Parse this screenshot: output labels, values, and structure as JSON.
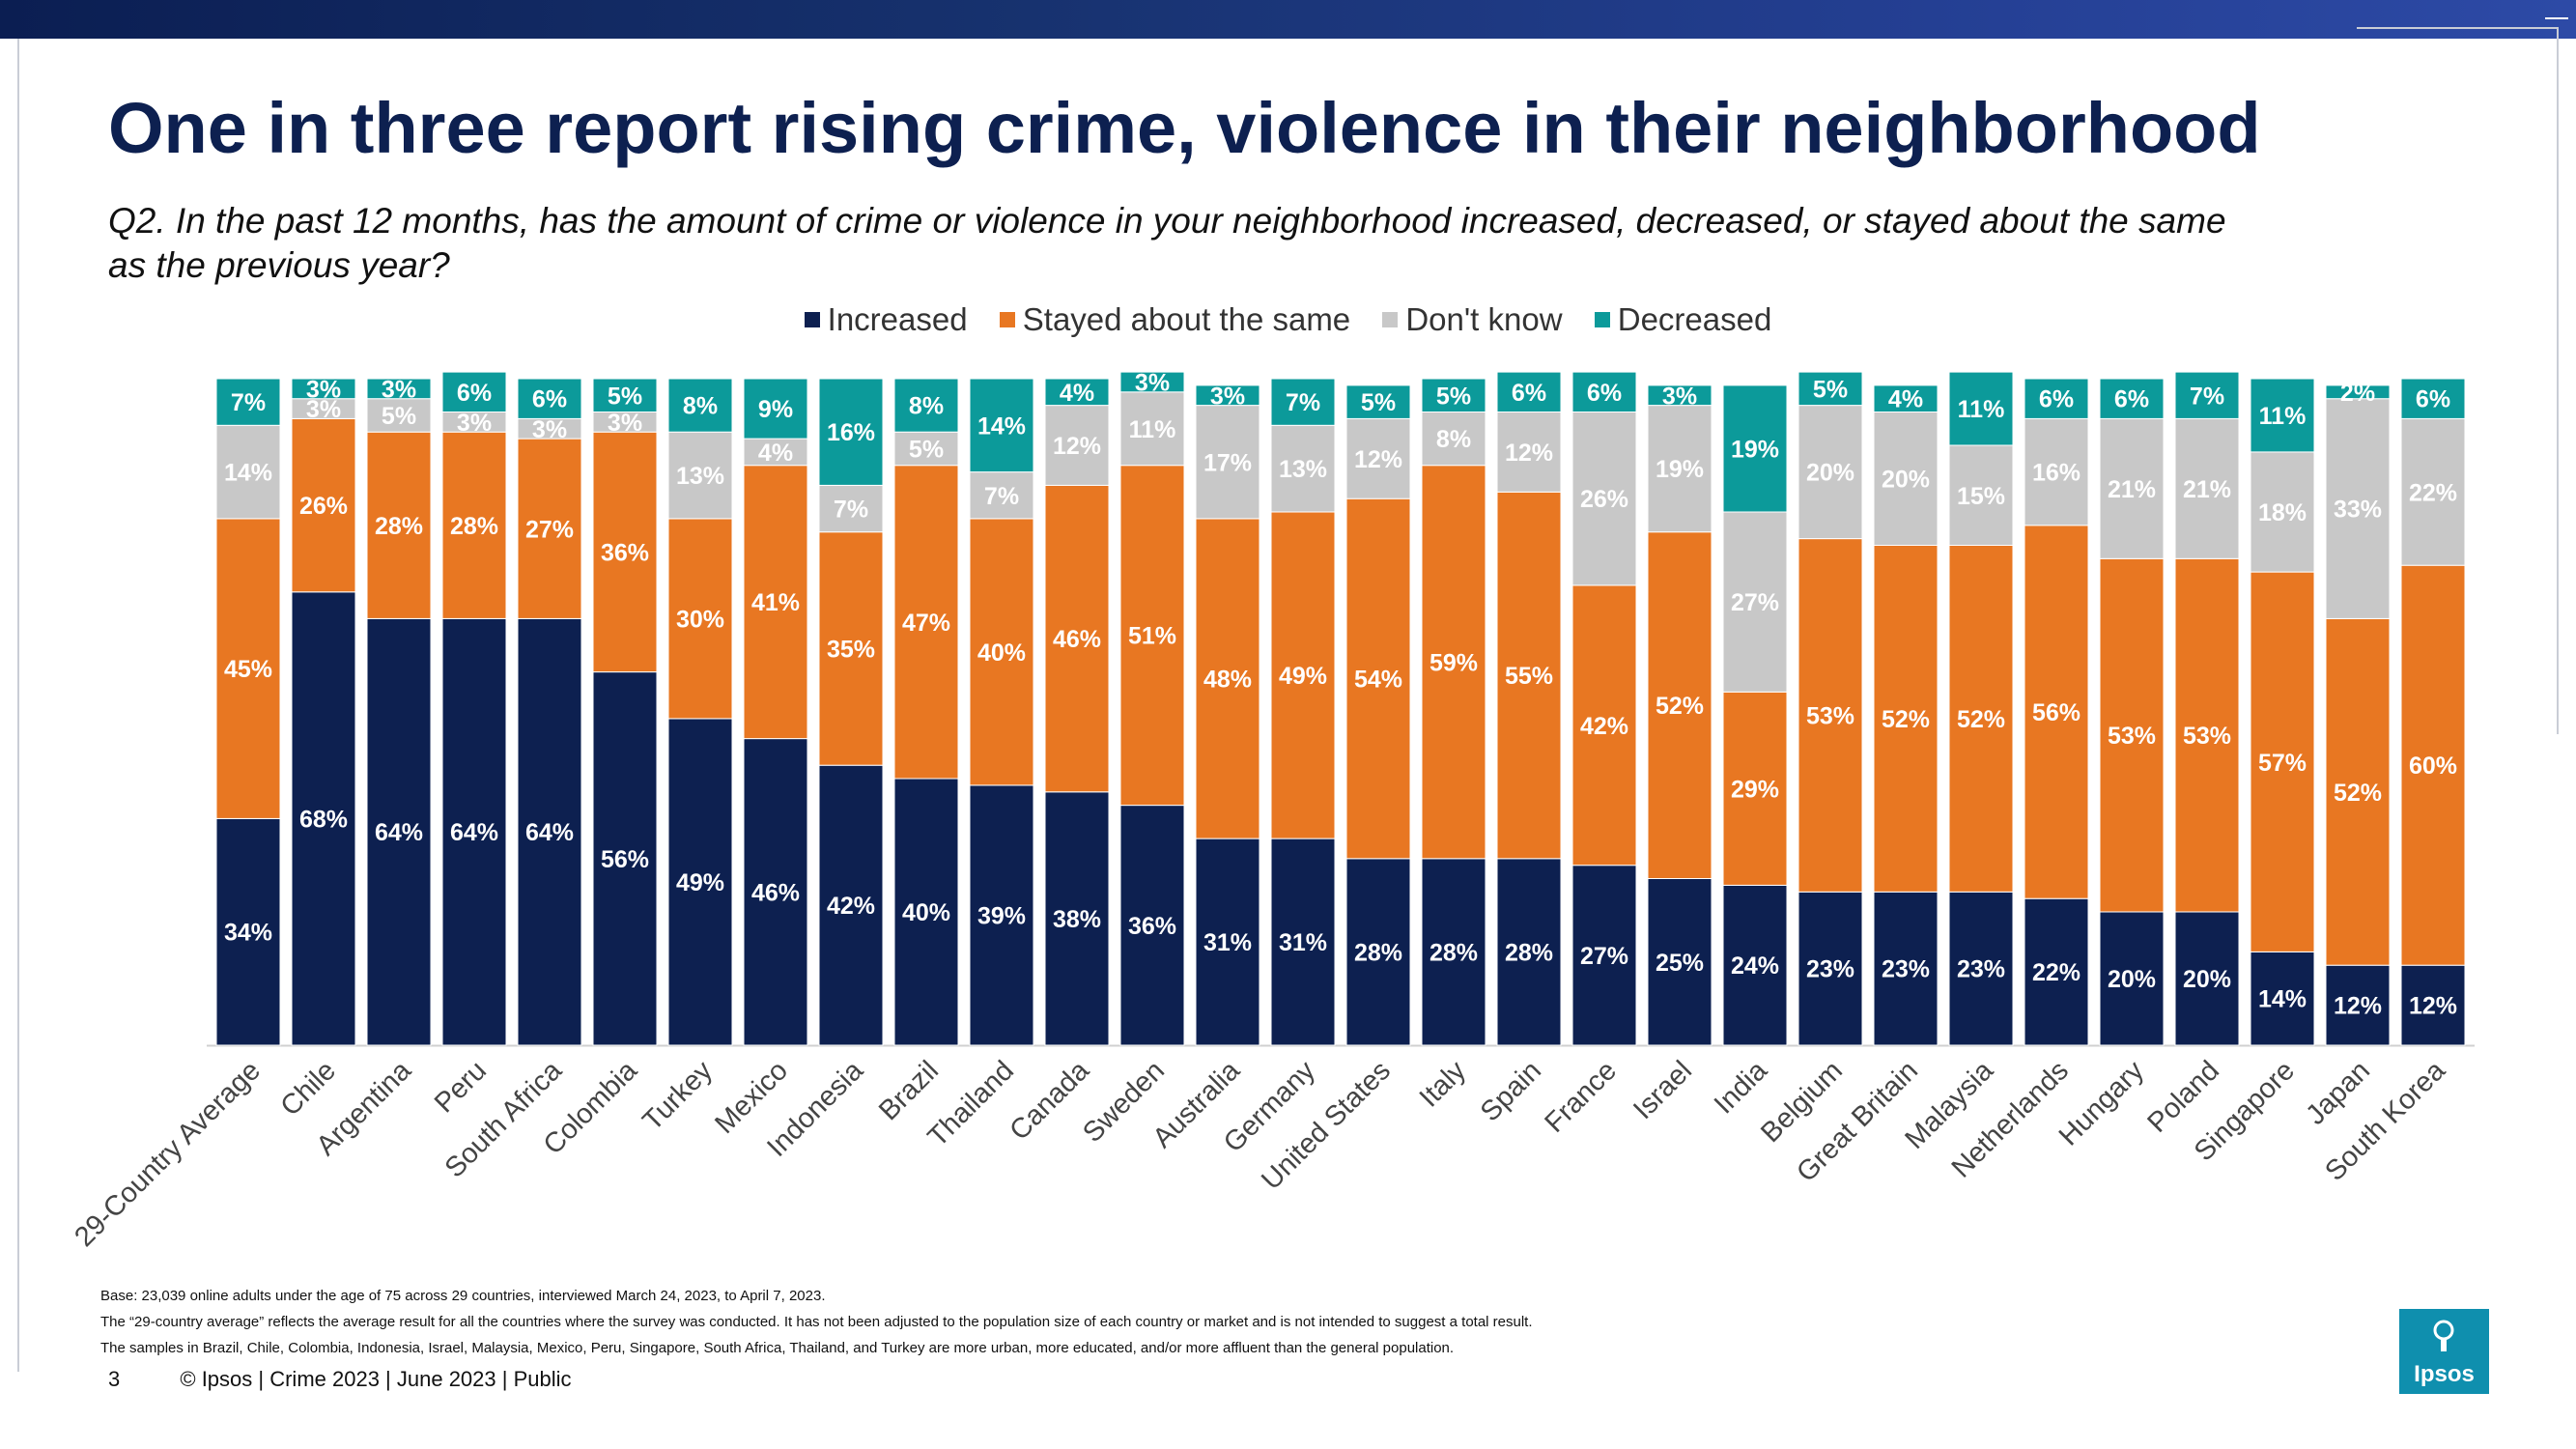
{
  "title": "One in three report rising crime, violence in their neighborhood",
  "subtitle": "Q2. In the past 12 months, has the amount of crime or violence in your neighborhood increased, decreased, or stayed about the same as the previous year?",
  "legend": [
    {
      "label": "Increased",
      "color": "#0d2050"
    },
    {
      "label": "Stayed about the same",
      "color": "#e87722"
    },
    {
      "label": "Don't know",
      "color": "#c8c8c8"
    },
    {
      "label": "Decreased",
      "color": "#0c9a9a"
    }
  ],
  "chart_data": {
    "type": "bar",
    "stacked": true,
    "percent": true,
    "ylim": [
      0,
      100
    ],
    "categories": [
      "29-Country Average",
      "Chile",
      "Argentina",
      "Peru",
      "South Africa",
      "Colombia",
      "Turkey",
      "Mexico",
      "Indonesia",
      "Brazil",
      "Thailand",
      "Canada",
      "Sweden",
      "Australia",
      "Germany",
      "United States",
      "Italy",
      "Spain",
      "France",
      "Israel",
      "India",
      "Belgium",
      "Great Britain",
      "Malaysia",
      "Netherlands",
      "Hungary",
      "Poland",
      "Singapore",
      "Japan",
      "South Korea"
    ],
    "series": [
      {
        "name": "Increased",
        "color": "#0d2050",
        "values": [
          34,
          68,
          64,
          64,
          64,
          56,
          49,
          46,
          42,
          40,
          39,
          38,
          36,
          31,
          31,
          28,
          28,
          28,
          27,
          25,
          24,
          23,
          23,
          23,
          22,
          20,
          20,
          14,
          12,
          12
        ]
      },
      {
        "name": "Stayed about the same",
        "color": "#e87722",
        "values": [
          45,
          26,
          28,
          28,
          27,
          36,
          30,
          41,
          35,
          47,
          40,
          46,
          51,
          48,
          49,
          54,
          59,
          55,
          42,
          52,
          29,
          53,
          52,
          52,
          56,
          53,
          53,
          57,
          52,
          60
        ]
      },
      {
        "name": "Don't know",
        "color": "#c8c8c8",
        "values": [
          14,
          3,
          5,
          3,
          3,
          3,
          13,
          4,
          7,
          5,
          7,
          12,
          11,
          17,
          13,
          12,
          8,
          12,
          26,
          19,
          27,
          20,
          20,
          15,
          16,
          21,
          21,
          18,
          33,
          22
        ]
      },
      {
        "name": "Decreased",
        "color": "#0c9a9a",
        "values": [
          7,
          3,
          3,
          6,
          6,
          5,
          8,
          9,
          16,
          8,
          14,
          4,
          3,
          3,
          7,
          5,
          5,
          6,
          6,
          3,
          19,
          5,
          4,
          11,
          6,
          6,
          7,
          11,
          2,
          6
        ]
      }
    ]
  },
  "notes": [
    "Base: 23,039 online adults under the age of 75 across 29 countries, interviewed March 24, 2023, to April 7, 2023.",
    "The “29-country average” reflects the average result for all the countries where the survey was conducted. It has not been adjusted to the population size of each country or market and is not intended to suggest a total result.",
    "The samples in Brazil, Chile, Colombia, Indonesia, Israel, Malaysia, Mexico, Peru, Singapore, South Africa, Thailand, and Turkey are more urban, more educated, and/or more affluent than the general population."
  ],
  "footer": {
    "page_number": "3",
    "text": "© Ipsos | Crime 2023 | June 2023 | Public"
  },
  "logo": {
    "text": "Ipsos"
  }
}
